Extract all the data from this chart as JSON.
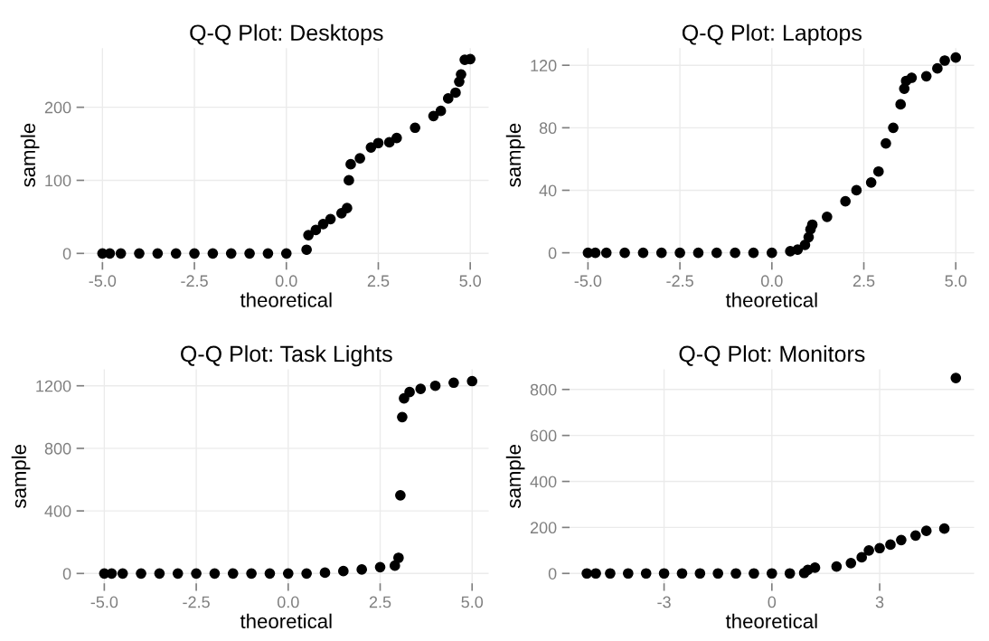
{
  "chart_data": [
    {
      "type": "scatter",
      "title": "Q-Q Plot: Desktops",
      "xlabel": "theoretical",
      "ylabel": "sample",
      "grid": true,
      "marker": "circle",
      "series": [
        {
          "color": "#000000",
          "x": [
            -5.0,
            -4.8,
            -4.5,
            -4.0,
            -3.5,
            -3.0,
            -2.5,
            -2.0,
            -1.5,
            -1.0,
            -0.5,
            0.0,
            0.55,
            0.6,
            0.8,
            1.0,
            1.2,
            1.5,
            1.65,
            1.7,
            1.75,
            2.0,
            2.3,
            2.5,
            2.8,
            3.0,
            3.5,
            4.0,
            4.2,
            4.4,
            4.6,
            4.7,
            4.75,
            4.85,
            5.0
          ],
          "values": [
            0,
            0,
            0,
            0,
            0,
            0,
            0,
            0,
            0,
            0,
            0,
            0,
            5,
            25,
            32,
            40,
            47,
            55,
            62,
            100,
            122,
            130,
            145,
            151,
            152,
            158,
            172,
            188,
            195,
            212,
            220,
            235,
            245,
            265,
            266
          ]
        }
      ],
      "xlim": [
        -5.5,
        5.5
      ],
      "xticks": [
        {
          "value": -5,
          "label": "-5.0"
        },
        {
          "value": -2.5,
          "label": "-2.5"
        },
        {
          "value": 0,
          "label": "0.0"
        },
        {
          "value": 2.5,
          "label": "2.5"
        },
        {
          "value": 5,
          "label": "5.0"
        }
      ],
      "ylim": [
        -12,
        281
      ],
      "yticks": [
        0,
        100,
        200
      ]
    },
    {
      "type": "scatter",
      "title": "Q-Q Plot: Laptops",
      "xlabel": "theoretical",
      "ylabel": "sample",
      "grid": true,
      "marker": "circle",
      "series": [
        {
          "color": "#000000",
          "x": [
            -5.0,
            -4.8,
            -4.5,
            -4.0,
            -3.5,
            -3.0,
            -2.5,
            -2.0,
            -1.5,
            -1.0,
            -0.5,
            0.0,
            0.5,
            0.7,
            0.9,
            1.0,
            1.05,
            1.1,
            1.5,
            2.0,
            2.3,
            2.7,
            2.9,
            3.1,
            3.3,
            3.5,
            3.6,
            3.65,
            3.8,
            4.2,
            4.5,
            4.7,
            5.0
          ],
          "values": [
            0,
            0,
            0,
            0,
            0,
            0,
            0,
            0,
            0,
            0,
            0,
            0,
            1,
            2,
            5,
            10,
            15,
            18,
            23,
            33,
            40,
            45,
            52,
            70,
            80,
            95,
            105,
            110,
            112,
            113,
            118,
            123,
            125
          ]
        }
      ],
      "xlim": [
        -5.5,
        5.5
      ],
      "xticks": [
        {
          "value": -5,
          "label": "-5.0"
        },
        {
          "value": -2.5,
          "label": "-2.5"
        },
        {
          "value": 0,
          "label": "0.0"
        },
        {
          "value": 2.5,
          "label": "2.5"
        },
        {
          "value": 5,
          "label": "5.0"
        }
      ],
      "ylim": [
        -6,
        131
      ],
      "yticks": [
        0,
        40,
        80,
        120
      ]
    },
    {
      "type": "scatter",
      "title": "Q-Q Plot: Task Lights",
      "xlabel": "theoretical",
      "ylabel": "sample",
      "grid": true,
      "marker": "circle",
      "series": [
        {
          "color": "#000000",
          "x": [
            -5.0,
            -4.8,
            -4.5,
            -4.0,
            -3.5,
            -3.0,
            -2.5,
            -2.0,
            -1.5,
            -1.0,
            -0.5,
            0.0,
            0.5,
            1.0,
            1.5,
            2.0,
            2.5,
            2.9,
            3.0,
            3.05,
            3.1,
            3.15,
            3.3,
            3.6,
            4.0,
            4.5,
            5.0
          ],
          "values": [
            0,
            0,
            0,
            0,
            0,
            0,
            0,
            0,
            0,
            0,
            0,
            0,
            0,
            5,
            15,
            25,
            40,
            50,
            100,
            500,
            1000,
            1120,
            1160,
            1180,
            1200,
            1220,
            1230
          ]
        }
      ],
      "xlim": [
        -5.55,
        5.45
      ],
      "xticks": [
        {
          "value": -5,
          "label": "-5.0"
        },
        {
          "value": -2.5,
          "label": "-2.5"
        },
        {
          "value": 0,
          "label": "0.0"
        },
        {
          "value": 2.5,
          "label": "2.5"
        },
        {
          "value": 5,
          "label": "5.0"
        }
      ],
      "ylim": [
        -63,
        1306
      ],
      "yticks": [
        0,
        400,
        800,
        1200
      ]
    },
    {
      "type": "scatter",
      "title": "Q-Q Plot: Monitors",
      "xlabel": "theoretical",
      "ylabel": "sample",
      "grid": true,
      "marker": "circle",
      "series": [
        {
          "color": "#000000",
          "x": [
            -5.15,
            -4.9,
            -4.5,
            -4.0,
            -3.5,
            -3.0,
            -2.5,
            -2.0,
            -1.5,
            -1.0,
            -0.5,
            0.0,
            0.5,
            0.9,
            1.0,
            1.2,
            1.8,
            2.2,
            2.5,
            2.7,
            3.0,
            3.3,
            3.6,
            4.0,
            4.3,
            4.8,
            5.12
          ],
          "values": [
            0,
            0,
            0,
            0,
            0,
            0,
            0,
            0,
            0,
            0,
            0,
            0,
            0,
            2,
            15,
            25,
            30,
            45,
            70,
            100,
            110,
            125,
            145,
            165,
            185,
            195,
            850
          ]
        }
      ],
      "xlim": [
        -5.63,
        5.63
      ],
      "xticks": [
        -3,
        0,
        3
      ],
      "ylim": [
        -43,
        888
      ],
      "yticks": [
        0,
        200,
        400,
        600,
        800
      ]
    }
  ]
}
